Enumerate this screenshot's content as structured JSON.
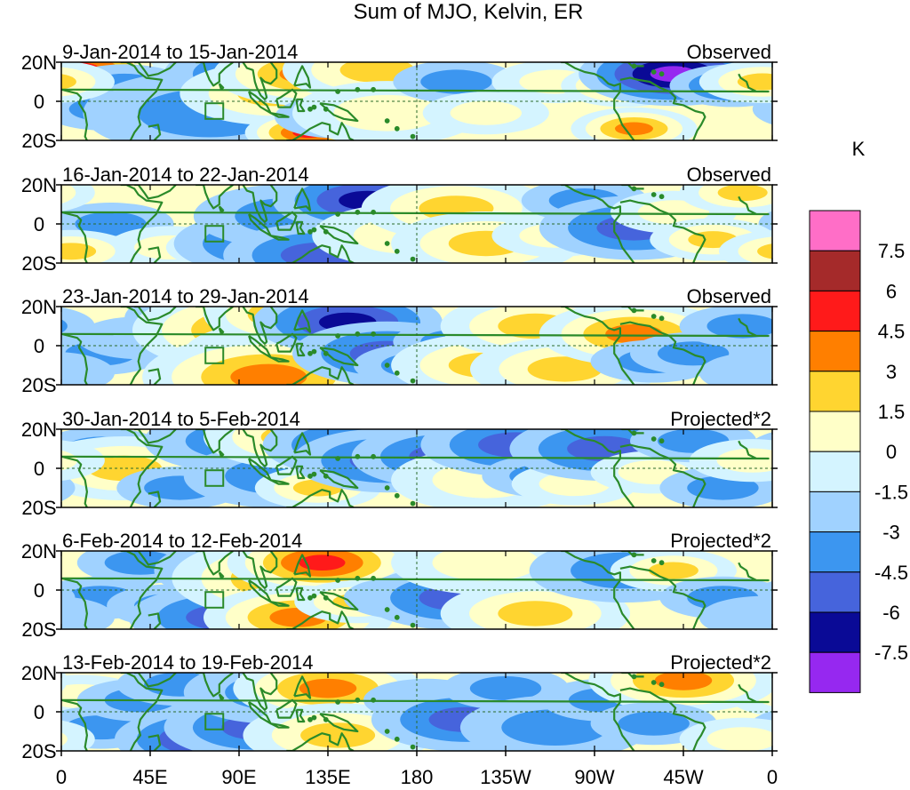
{
  "chart_data": {
    "type": "heatmap",
    "title": "Sum of MJO, Kelvin, ER",
    "colorbar": {
      "unit": "K",
      "levels": [
        "7.5",
        "6",
        "4.5",
        "3",
        "1.5",
        "0",
        "-1.5",
        "-3",
        "-4.5",
        "-6",
        "-7.5"
      ],
      "colors": [
        "#ff6ec7",
        "#a52a2a",
        "#ff1a1a",
        "#ff7f00",
        "#ffd530",
        "#ffffc8",
        "#d4f4ff",
        "#a0d2ff",
        "#3c96f0",
        "#4664dc",
        "#0a0a96",
        "#9628f0"
      ]
    },
    "xaxis": {
      "ticks": [
        "0",
        "45E",
        "90E",
        "135E",
        "180",
        "135W",
        "90W",
        "45W",
        "0"
      ],
      "range_deg": [
        0,
        360
      ]
    },
    "yaxis": {
      "ticks": [
        "20N",
        "0",
        "20S"
      ],
      "range_deg": [
        -20,
        20
      ]
    },
    "panels": [
      {
        "period": "9-Jan-2014 to 15-Jan-2014",
        "status": "Observed",
        "blobs": [
          [
            8,
            16,
            3,
            7
          ],
          [
            32,
            8,
            2,
            -3
          ],
          [
            22,
            -4,
            2,
            -3
          ],
          [
            75,
            -6,
            4,
            -3
          ],
          [
            100,
            14,
            3,
            -4
          ],
          [
            108,
            4,
            3,
            5
          ],
          [
            125,
            14,
            3,
            6
          ],
          [
            125,
            -16,
            2,
            8
          ],
          [
            140,
            -8,
            2,
            -4
          ],
          [
            160,
            16,
            3,
            5
          ],
          [
            165,
            -6,
            3,
            3
          ],
          [
            200,
            10,
            2,
            -3
          ],
          [
            215,
            -6,
            2,
            3
          ],
          [
            250,
            10,
            2,
            3
          ],
          [
            285,
            8,
            2,
            6
          ],
          [
            290,
            -14,
            2,
            6
          ],
          [
            310,
            14,
            3,
            -7
          ],
          [
            340,
            8,
            2,
            -4
          ],
          [
            355,
            10,
            2,
            4
          ]
        ]
      },
      {
        "period": "16-Jan-2014 to 22-Jan-2014",
        "status": "Observed",
        "blobs": [
          [
            25,
            0,
            2,
            -3
          ],
          [
            55,
            -12,
            2,
            3
          ],
          [
            85,
            -12,
            2,
            3
          ],
          [
            105,
            -10,
            3,
            -5
          ],
          [
            115,
            4,
            3,
            -3
          ],
          [
            130,
            -16,
            3,
            -5
          ],
          [
            145,
            10,
            2,
            -3
          ],
          [
            155,
            12,
            3,
            -6
          ],
          [
            175,
            -6,
            3,
            3
          ],
          [
            200,
            8,
            3,
            5
          ],
          [
            215,
            -10,
            3,
            5
          ],
          [
            250,
            -6,
            2,
            3
          ],
          [
            265,
            12,
            2,
            -3
          ],
          [
            290,
            -2,
            3,
            -4
          ],
          [
            310,
            6,
            2,
            3
          ],
          [
            330,
            -8,
            2,
            4
          ],
          [
            345,
            16,
            2,
            5
          ],
          [
            5,
            -14,
            2,
            4
          ]
        ]
      },
      {
        "period": "23-Jan-2014 to 29-Jan-2014",
        "status": "Observed",
        "blobs": [
          [
            20,
            -4,
            2,
            -3
          ],
          [
            40,
            4,
            2,
            -2
          ],
          [
            80,
            14,
            3,
            -3
          ],
          [
            100,
            8,
            4,
            6
          ],
          [
            110,
            -4,
            3,
            5
          ],
          [
            120,
            16,
            3,
            6
          ],
          [
            105,
            -16,
            4,
            6
          ],
          [
            145,
            12,
            3,
            -6
          ],
          [
            165,
            -4,
            3,
            -4
          ],
          [
            180,
            -10,
            2,
            -3
          ],
          [
            200,
            2,
            2,
            -3
          ],
          [
            215,
            -10,
            3,
            5
          ],
          [
            240,
            10,
            3,
            4
          ],
          [
            255,
            -12,
            3,
            5
          ],
          [
            290,
            6,
            3,
            6
          ],
          [
            300,
            -8,
            2,
            -3
          ],
          [
            320,
            -4,
            2,
            -3
          ],
          [
            345,
            10,
            2,
            -3
          ],
          [
            355,
            -14,
            2,
            -2
          ]
        ]
      },
      {
        "period": "30-Jan-2014 to 5-Feb-2014",
        "status": "Projected*2",
        "blobs": [
          [
            20,
            10,
            2,
            -3
          ],
          [
            32,
            0,
            3,
            4
          ],
          [
            60,
            -10,
            2,
            -3
          ],
          [
            90,
            14,
            3,
            -3
          ],
          [
            110,
            -4,
            3,
            -3
          ],
          [
            120,
            16,
            3,
            5
          ],
          [
            130,
            -10,
            2,
            4
          ],
          [
            150,
            12,
            3,
            -4
          ],
          [
            165,
            4,
            3,
            -4
          ],
          [
            195,
            6,
            3,
            -4
          ],
          [
            215,
            -6,
            3,
            3
          ],
          [
            230,
            12,
            3,
            -4
          ],
          [
            245,
            -4,
            2,
            -3
          ],
          [
            260,
            -8,
            2,
            3
          ],
          [
            275,
            10,
            3,
            -4
          ],
          [
            300,
            -2,
            2,
            3
          ],
          [
            320,
            14,
            2,
            -3
          ],
          [
            335,
            -10,
            2,
            -3
          ],
          [
            350,
            4,
            2,
            3
          ]
        ]
      },
      {
        "period": "6-Feb-2014 to 12-Feb-2014",
        "status": "Projected*2",
        "blobs": [
          [
            20,
            -4,
            2,
            -3
          ],
          [
            40,
            14,
            2,
            -3
          ],
          [
            55,
            -8,
            2,
            -3
          ],
          [
            82,
            -14,
            3,
            -5
          ],
          [
            95,
            10,
            3,
            -3
          ],
          [
            120,
            6,
            4,
            6
          ],
          [
            132,
            14,
            3,
            7
          ],
          [
            120,
            -14,
            3,
            6
          ],
          [
            150,
            -6,
            2,
            4
          ],
          [
            175,
            -4,
            2,
            -3
          ],
          [
            200,
            -4,
            3,
            -4
          ],
          [
            215,
            14,
            3,
            3
          ],
          [
            240,
            -12,
            3,
            4
          ],
          [
            285,
            10,
            3,
            -3
          ],
          [
            310,
            10,
            2,
            5
          ],
          [
            335,
            -4,
            2,
            -3
          ],
          [
            355,
            -14,
            2,
            -2
          ]
        ]
      },
      {
        "period": "13-Feb-2014 to 19-Feb-2014",
        "status": "Projected*2",
        "blobs": [
          [
            10,
            8,
            2,
            3
          ],
          [
            20,
            -8,
            2,
            -3
          ],
          [
            40,
            6,
            2,
            -3
          ],
          [
            60,
            14,
            2,
            -3
          ],
          [
            75,
            -14,
            3,
            -6
          ],
          [
            100,
            -8,
            3,
            -4
          ],
          [
            110,
            10,
            3,
            -3
          ],
          [
            135,
            12,
            3,
            6
          ],
          [
            140,
            -12,
            3,
            5
          ],
          [
            185,
            6,
            2,
            -2
          ],
          [
            205,
            -4,
            3,
            -4
          ],
          [
            225,
            12,
            2,
            -3
          ],
          [
            250,
            -8,
            3,
            -3
          ],
          [
            275,
            6,
            2,
            -3
          ],
          [
            315,
            16,
            3,
            6
          ],
          [
            300,
            -6,
            2,
            -3
          ],
          [
            345,
            -14,
            2,
            3
          ]
        ]
      }
    ]
  }
}
